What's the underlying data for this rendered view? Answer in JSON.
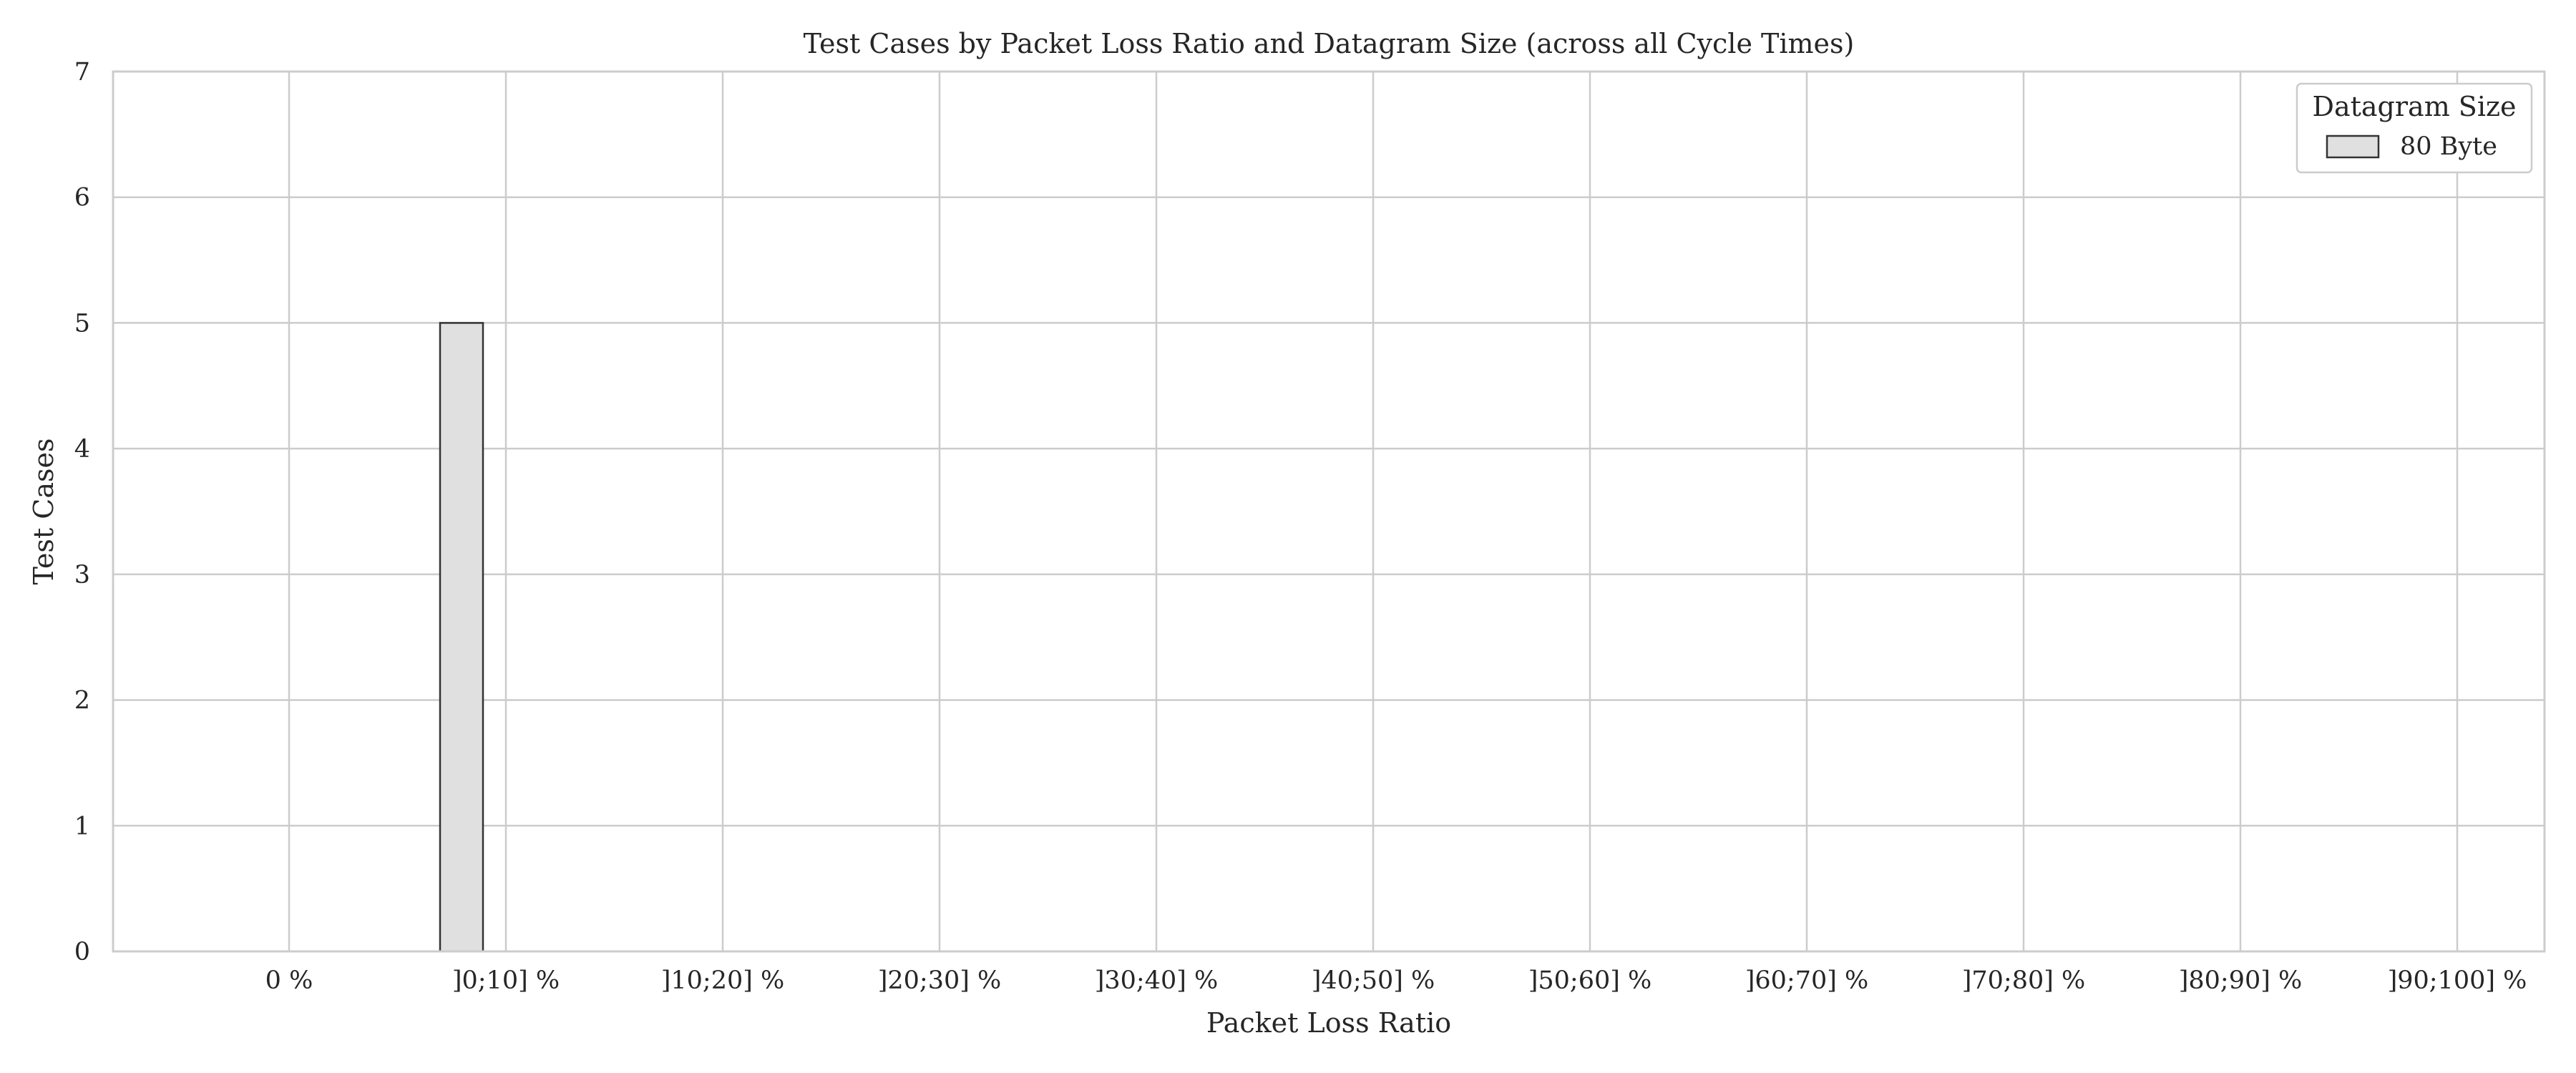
{
  "chart_data": {
    "type": "bar",
    "title": "Test Cases by Packet Loss Ratio and Datagram Size (across all Cycle Times)",
    "xlabel": "Packet Loss Ratio",
    "ylabel": "Test Cases",
    "categories": [
      "0 %",
      "]0;10] %",
      "]10;20] %",
      "]20;30] %",
      "]30;40] %",
      "]40;50] %",
      "]50;60] %",
      "]60;70] %",
      "]70;80] %",
      "]80;90] %",
      "]90;100] %"
    ],
    "series": [
      {
        "name": "80 Byte",
        "values": [
          0,
          5,
          0,
          0,
          0,
          0,
          0,
          0,
          0,
          0,
          0
        ],
        "color": "#e0e0e0"
      }
    ],
    "ylim": [
      0,
      7
    ],
    "yticks": [
      0,
      1,
      2,
      3,
      4,
      5,
      6,
      7
    ],
    "grid": true,
    "legend": {
      "title": "Datagram Size",
      "position": "top-right"
    },
    "colors": {
      "grid": "#cccccc",
      "axes": "#cccccc",
      "bar_edge": "#333333",
      "text": "#262626"
    }
  }
}
